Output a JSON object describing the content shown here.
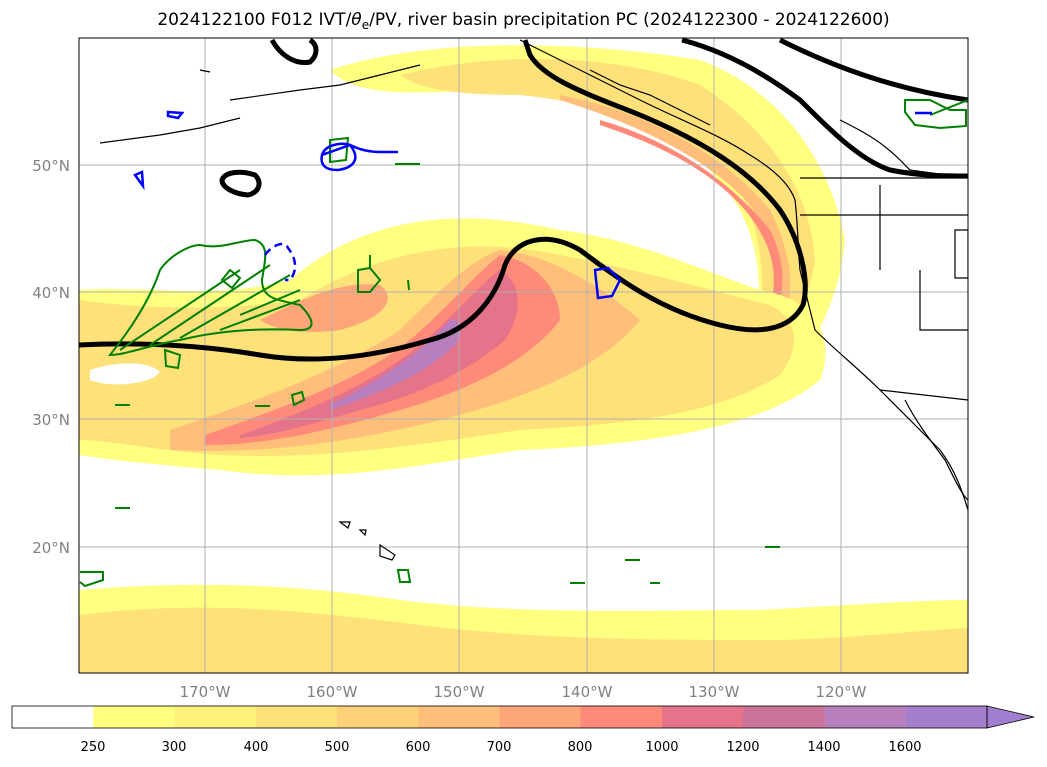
{
  "title": {
    "prefix": "2024122100 F012 IVT/",
    "theta": "θ",
    "theta_sub": "e",
    "suffix": "/PV, river basin precipitation PC (2024122300 - 2024122600)"
  },
  "map": {
    "lat_labels": [
      "50°N",
      "40°N",
      "30°N",
      "20°N"
    ],
    "lon_labels": [
      "170°W",
      "160°W",
      "150°W",
      "140°W",
      "130°W",
      "120°W"
    ]
  },
  "colorbar": {
    "ticks": [
      "250",
      "300",
      "400",
      "500",
      "600",
      "700",
      "800",
      "1000",
      "1200",
      "1400",
      "1600"
    ],
    "colors": [
      "#ffffff",
      "#ffff80",
      "#fff27a",
      "#ffe17a",
      "#ffd27a",
      "#ffbf7a",
      "#ffa57a",
      "#ff8a7a",
      "#e5738a",
      "#cc7399",
      "#b87fbf",
      "#a57fcc",
      "#a07fd0"
    ]
  }
}
